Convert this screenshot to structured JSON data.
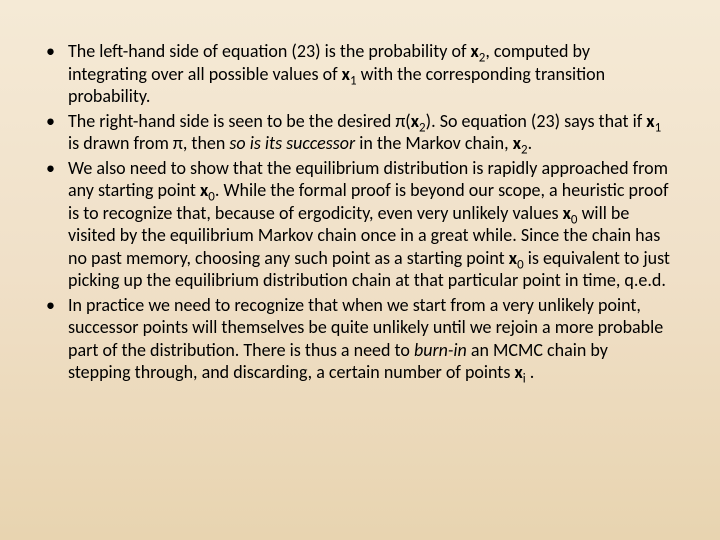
{
  "background_gradient": [
    "#f5ead6",
    "#f0e0c8",
    "#e8d4b0"
  ],
  "text_color": "#000000",
  "font_size_pt": 14,
  "bullets": [
    {
      "segments": [
        {
          "t": "The left-hand side of equation (23) is the probability of "
        },
        {
          "t": "x",
          "b": true
        },
        {
          "t": "2",
          "sub": true
        },
        {
          "t": ", computed by integrating over all possible values of "
        },
        {
          "t": "x",
          "b": true
        },
        {
          "t": "1",
          "sub": true
        },
        {
          "t": " with the corresponding transition probability."
        }
      ]
    },
    {
      "segments": [
        {
          "t": "The right-hand side is seen to be the desired π("
        },
        {
          "t": "x",
          "b": true
        },
        {
          "t": "2",
          "sub": true
        },
        {
          "t": "). So equation (23) says that if "
        },
        {
          "t": "x",
          "b": true
        },
        {
          "t": "1",
          "sub": true
        },
        {
          "t": " is drawn from π, then "
        },
        {
          "t": "so is its successor",
          "i": true
        },
        {
          "t": " in the Markov chain, "
        },
        {
          "t": "x",
          "b": true
        },
        {
          "t": "2",
          "sub": true
        },
        {
          "t": "."
        }
      ]
    },
    {
      "segments": [
        {
          "t": "We also need to show that the equilibrium distribution is rapidly approached from any starting point "
        },
        {
          "t": "x",
          "b": true
        },
        {
          "t": "0",
          "sub": true
        },
        {
          "t": ". While the formal proof is beyond our scope, a heuristic proof is to recognize that, because of ergodicity, even very unlikely values "
        },
        {
          "t": "x",
          "b": true
        },
        {
          "t": "0",
          "sub": true
        },
        {
          "t": " will be visited by the equilibrium Markov chain once in a great while. Since the chain has no past memory, choosing any such point as a starting point "
        },
        {
          "t": "x",
          "b": true
        },
        {
          "t": "0",
          "sub": true
        },
        {
          "t": " is equivalent to just picking up the equilibrium distribution chain at that particular point in time, q.e.d."
        }
      ]
    },
    {
      "segments": [
        {
          "t": "In practice we need to recognize that when we start from a very unlikely point, successor points will themselves be quite unlikely until we rejoin a more probable part of the distribution. There is thus a need to "
        },
        {
          "t": "burn-in",
          "i": true
        },
        {
          "t": " an MCMC chain by stepping through, and discarding, a certain number of points "
        },
        {
          "t": "x",
          "b": true
        },
        {
          "t": "i",
          "sub": true
        },
        {
          "t": " ."
        }
      ]
    }
  ]
}
